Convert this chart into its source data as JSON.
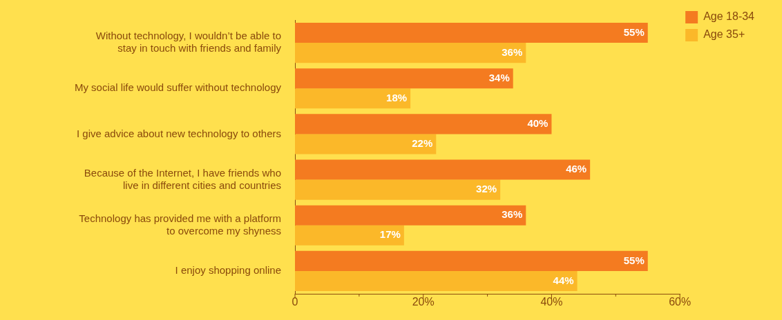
{
  "chart_data": {
    "type": "bar",
    "orientation": "horizontal",
    "categories": [
      "Without technology, I wouldn’t be able to stay in touch with friends and family",
      "My social life would suffer without technology",
      "I give advice about new technology to others",
      "Because of the Internet, I have friends who live in different cities and countries",
      "Technology has provided me with a platform to overcome my shyness",
      "I enjoy shopping online"
    ],
    "series": [
      {
        "name": "Age 18-34",
        "color": "#f47b20",
        "values": [
          55,
          34,
          40,
          46,
          36,
          55
        ]
      },
      {
        "name": "Age 35+",
        "color": "#fbb829",
        "values": [
          36,
          18,
          22,
          32,
          17,
          44
        ]
      }
    ],
    "value_labels": [
      [
        "55%",
        "34%",
        "40%",
        "46%",
        "36%",
        "55%"
      ],
      [
        "36%",
        "18%",
        "22%",
        "32%",
        "17%",
        "44%"
      ]
    ],
    "xlim": [
      0,
      60
    ],
    "xticks": [
      {
        "value": 0,
        "label": "0"
      },
      {
        "value": 10,
        "label": null
      },
      {
        "value": 20,
        "label": "20%"
      },
      {
        "value": 30,
        "label": null
      },
      {
        "value": 40,
        "label": "40%"
      },
      {
        "value": 50,
        "label": null
      },
      {
        "value": 60,
        "label": "60%"
      }
    ],
    "grid": false,
    "legend": "top right"
  }
}
